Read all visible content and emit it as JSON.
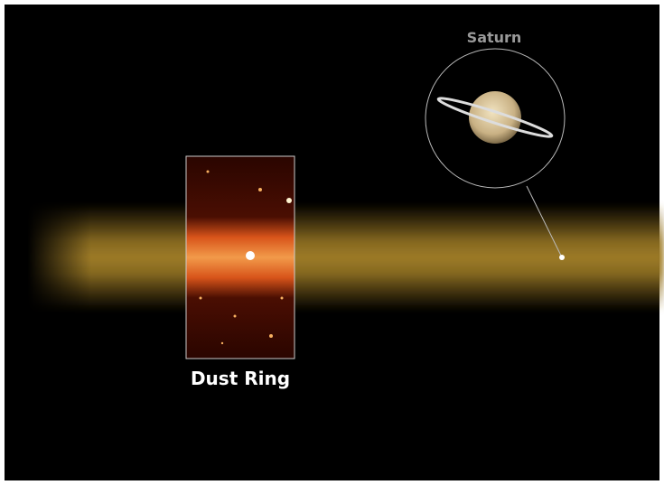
{
  "labels": {
    "planet": "Saturn",
    "ring": "Dust Ring"
  }
}
